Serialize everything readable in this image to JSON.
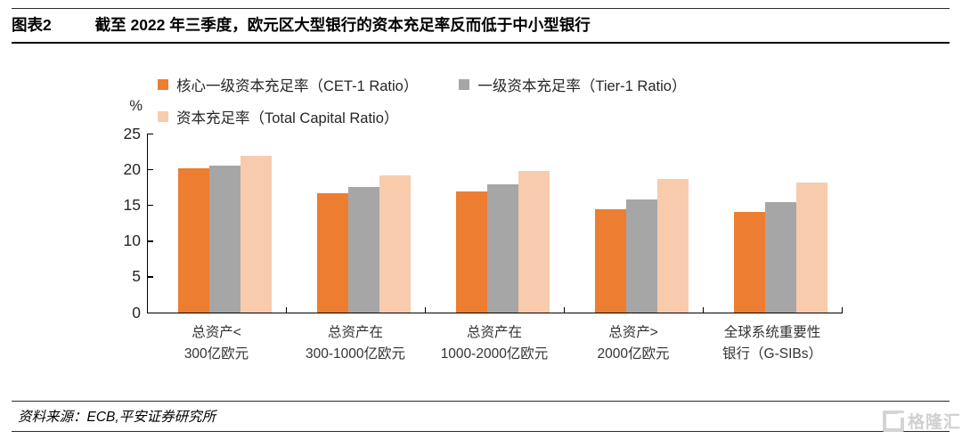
{
  "header": {
    "figure_label": "图表2",
    "title": "截至 2022 年三季度，欧元区大型银行的资本充足率反而低于中小型银行"
  },
  "chart_data": {
    "type": "bar",
    "title": "",
    "xlabel": "",
    "ylabel": "%",
    "unit_label": "%",
    "ylim": [
      0,
      25
    ],
    "yticks": [
      0,
      5,
      10,
      15,
      20,
      25
    ],
    "grid": false,
    "legend_position": "top",
    "categories": [
      [
        "总资产<",
        "300亿欧元"
      ],
      [
        "总资产在",
        "300-1000亿欧元"
      ],
      [
        "总资产在",
        "1000-2000亿欧元"
      ],
      [
        "总资产>",
        "2000亿欧元"
      ],
      [
        "全球系统重要性",
        "银行（G-SIBs）"
      ]
    ],
    "series": [
      {
        "name": "核心一级资本充足率（CET-1 Ratio）",
        "color": "#ED7D31",
        "values": [
          20.1,
          16.7,
          16.9,
          14.4,
          14.0
        ]
      },
      {
        "name": "一级资本充足率（Tier-1 Ratio）",
        "color": "#A6A6A6",
        "values": [
          20.5,
          17.5,
          17.9,
          15.8,
          15.4
        ]
      },
      {
        "name": "资本充足率（Total Capital Ratio）",
        "color": "#F8CBAD",
        "values": [
          21.9,
          19.2,
          19.8,
          18.7,
          18.2
        ]
      }
    ],
    "colors": {
      "cet1": "#ED7D31",
      "tier1": "#A6A6A6",
      "total": "#F8CBAD"
    }
  },
  "footer": {
    "source": "资料来源：ECB,平安证券研究所",
    "watermark_text": "格隆汇"
  }
}
